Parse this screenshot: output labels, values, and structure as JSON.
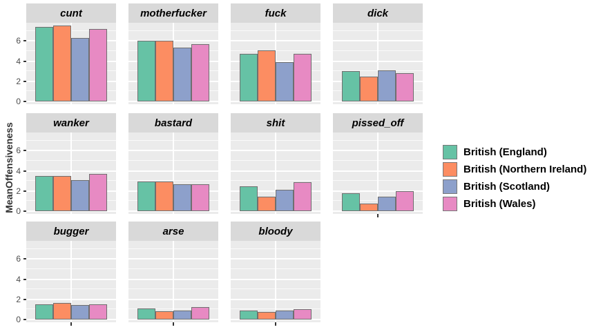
{
  "figure": {
    "ylabel": "MeanOffensiveness",
    "y_ticks": [
      0,
      2,
      4,
      6
    ],
    "colors": {
      "panel_background": "#ebebeb",
      "strip_background": "#d9d9d9",
      "gridline": "#ffffff",
      "bar_border": "#6f6f6f",
      "axis_text": "#4d4d4d"
    }
  },
  "legend": {
    "position": "right",
    "entries": [
      {
        "label": "British (England)",
        "color": "#66c2a5"
      },
      {
        "label": "British (Northern Ireland)",
        "color": "#fc8d62"
      },
      {
        "label": "British (Scotland)",
        "color": "#8da0cb"
      },
      {
        "label": "British (Wales)",
        "color": "#e78ac3"
      }
    ]
  },
  "chart_data": {
    "type": "bar",
    "faceted": true,
    "facets": [
      "cunt",
      "motherfucker",
      "fuck",
      "dick",
      "wanker",
      "bastard",
      "shit",
      "pissed_off",
      "bugger",
      "arse",
      "bloody"
    ],
    "series": [
      {
        "name": "British (England)",
        "color": "#66c2a5",
        "values": [
          7.4,
          6.0,
          4.75,
          3.0,
          3.5,
          2.95,
          2.45,
          1.8,
          1.5,
          1.1,
          0.9
        ]
      },
      {
        "name": "British (Northern Ireland)",
        "color": "#fc8d62",
        "values": [
          7.5,
          6.05,
          5.05,
          2.45,
          3.5,
          2.95,
          1.45,
          0.75,
          1.65,
          0.8,
          0.75
        ]
      },
      {
        "name": "British (Scotland)",
        "color": "#8da0cb",
        "values": [
          6.3,
          5.35,
          3.9,
          3.05,
          3.1,
          2.65,
          2.1,
          1.45,
          1.45,
          0.9,
          0.9
        ]
      },
      {
        "name": "British (Wales)",
        "color": "#e78ac3",
        "values": [
          7.15,
          5.65,
          4.75,
          2.8,
          3.7,
          2.7,
          2.9,
          1.95,
          1.5,
          1.25,
          1.05
        ]
      }
    ],
    "title": "",
    "xlabel": "",
    "ylabel": "MeanOffensiveness",
    "ylim": [
      0,
      7.8
    ],
    "y_ticks": [
      0,
      2,
      4,
      6
    ],
    "grid": true,
    "legend_position": "right"
  }
}
